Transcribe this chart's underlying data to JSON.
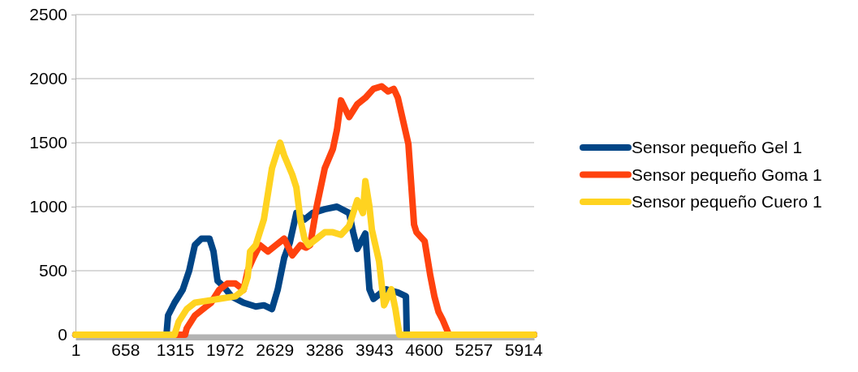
{
  "chart_data": {
    "type": "line",
    "xlim": [
      1,
      6056
    ],
    "xticks": [
      1,
      658,
      1315,
      1972,
      2629,
      3286,
      3943,
      4600,
      5257,
      5914
    ],
    "ylim": [
      0,
      2500
    ],
    "yticks": [
      0,
      500,
      1000,
      1500,
      2000,
      2500
    ],
    "grid": "y",
    "legend": "right",
    "marker": "none",
    "line_style": "solid",
    "series": [
      {
        "name": "Sensor pequeño Gel 1",
        "color": "#004586",
        "x": [
          1,
          1202,
          1223,
          1309,
          1416,
          1502,
          1577,
          1663,
          1770,
          1823,
          1877,
          1952,
          2059,
          2220,
          2381,
          2488,
          2595,
          2670,
          2756,
          2831,
          2917,
          3024,
          3131,
          3292,
          3453,
          3614,
          3667,
          3721,
          3828,
          3882,
          3935,
          4096,
          4257,
          4364,
          4375,
          6056
        ],
        "values": [
          0,
          0,
          150,
          250,
          350,
          500,
          700,
          750,
          750,
          650,
          420,
          380,
          300,
          250,
          220,
          230,
          200,
          350,
          600,
          720,
          950,
          900,
          950,
          980,
          1000,
          950,
          800,
          670,
          790,
          355,
          280,
          355,
          330,
          300,
          0,
          0
        ]
      },
      {
        "name": "Sensor pequeño Goma 1",
        "color": "#ff420e",
        "x": [
          1,
          1448,
          1470,
          1577,
          1684,
          1791,
          1898,
          2006,
          2113,
          2220,
          2274,
          2349,
          2434,
          2542,
          2649,
          2756,
          2863,
          2970,
          3045,
          3099,
          3185,
          3292,
          3399,
          3453,
          3506,
          3614,
          3721,
          3828,
          3935,
          4042,
          4128,
          4203,
          4257,
          4396,
          4471,
          4503,
          4611,
          4686,
          4739,
          4793,
          4846,
          4932,
          6056
        ],
        "values": [
          0,
          0,
          50,
          150,
          200,
          250,
          350,
          400,
          400,
          350,
          500,
          600,
          700,
          650,
          700,
          750,
          620,
          700,
          680,
          700,
          1000,
          1300,
          1450,
          1600,
          1830,
          1700,
          1800,
          1850,
          1920,
          1940,
          1900,
          1920,
          1850,
          1490,
          860,
          800,
          730,
          460,
          300,
          180,
          120,
          0,
          0
        ]
      },
      {
        "name": "Sensor pequeño Cuero 1",
        "color": "#ffd320",
        "x": [
          1,
          1309,
          1362,
          1470,
          1577,
          1684,
          1791,
          1898,
          2113,
          2220,
          2274,
          2306,
          2381,
          2488,
          2595,
          2702,
          2756,
          2863,
          2917,
          2970,
          3024,
          3078,
          3185,
          3292,
          3399,
          3506,
          3614,
          3721,
          3796,
          3828,
          3882,
          3914,
          4010,
          4075,
          4171,
          4225,
          4278,
          6056
        ],
        "values": [
          0,
          0,
          100,
          200,
          250,
          260,
          270,
          280,
          300,
          350,
          450,
          650,
          700,
          900,
          1300,
          1500,
          1400,
          1250,
          1150,
          900,
          750,
          700,
          750,
          800,
          800,
          780,
          850,
          1050,
          950,
          1200,
          1000,
          820,
          570,
          230,
          355,
          200,
          0,
          0
        ]
      }
    ]
  }
}
